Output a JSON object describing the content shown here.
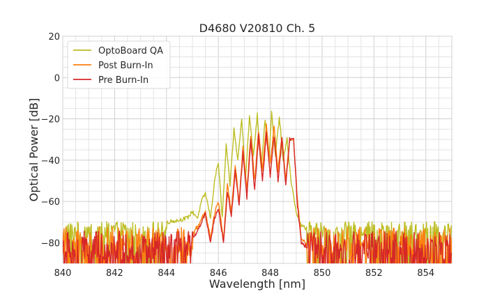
{
  "chart_data": {
    "type": "line",
    "title": "D4680 V20810 Ch. 5",
    "xlabel": "Wavelength [nm]",
    "ylabel": "Optical Power [dB]",
    "xlim": [
      840,
      855
    ],
    "ylim": [
      -90,
      20
    ],
    "xticks": [
      "840",
      "842",
      "844",
      "846",
      "848",
      "850",
      "852",
      "854"
    ],
    "yticks": [
      "20",
      "0",
      "−20",
      "−40",
      "−60",
      "−80"
    ],
    "grid": true,
    "legend": "top-left",
    "series": [
      {
        "name": "OptoBoard QA",
        "color": "#bcbd22",
        "noise_floor": -73,
        "noise_span": 8,
        "x": [
          844.0,
          844.5,
          844.8,
          845.0,
          845.2,
          845.35,
          845.5,
          845.7,
          845.85,
          846.0,
          846.15,
          846.3,
          846.45,
          846.6,
          846.75,
          846.9,
          847.05,
          847.2,
          847.35,
          847.5,
          847.65,
          847.8,
          847.95,
          848.05,
          848.2,
          848.35,
          848.5,
          848.65,
          848.8,
          849.0,
          849.2,
          849.4
        ],
        "y": [
          -70,
          -69,
          -68,
          -65,
          -68,
          -60,
          -56,
          -68,
          -50,
          -41,
          -68,
          -33,
          -52,
          -25,
          -40,
          -20,
          -48,
          -19,
          -38,
          -18,
          -44,
          -20,
          -40,
          -17,
          -38,
          -19,
          -40,
          -30,
          -50,
          -65,
          -72,
          -73
        ]
      },
      {
        "name": "Post Burn-In",
        "color": "#ff7f0e",
        "noise_floor": -78,
        "noise_span": 14,
        "x": [
          845.0,
          845.3,
          845.5,
          845.7,
          845.85,
          846.0,
          846.2,
          846.35,
          846.5,
          846.65,
          846.8,
          846.95,
          847.1,
          847.25,
          847.4,
          847.55,
          847.7,
          847.85,
          848.0,
          848.15,
          848.3,
          848.45,
          848.6,
          848.75,
          848.9,
          849.05,
          849.2,
          849.4
        ],
        "y": [
          -76,
          -70,
          -65,
          -78,
          -66,
          -60,
          -78,
          -52,
          -65,
          -42,
          -60,
          -33,
          -55,
          -28,
          -50,
          -26,
          -45,
          -23,
          -42,
          -24,
          -45,
          -28,
          -50,
          -30,
          -30,
          -60,
          -78,
          -80
        ]
      },
      {
        "name": "Pre Burn-In",
        "color": "#d62728",
        "noise_floor": -80,
        "noise_span": 14,
        "x": [
          845.0,
          845.3,
          845.5,
          845.7,
          845.85,
          846.0,
          846.2,
          846.35,
          846.5,
          846.65,
          846.8,
          846.95,
          847.1,
          847.25,
          847.4,
          847.55,
          847.7,
          847.85,
          848.0,
          848.15,
          848.3,
          848.45,
          848.6,
          848.75,
          848.9,
          849.05,
          849.2,
          849.4
        ],
        "y": [
          -78,
          -72,
          -66,
          -80,
          -68,
          -63,
          -80,
          -55,
          -68,
          -45,
          -62,
          -36,
          -58,
          -30,
          -55,
          -28,
          -50,
          -27,
          -48,
          -28,
          -50,
          -30,
          -52,
          -30,
          -29,
          -62,
          -80,
          -82
        ]
      }
    ]
  }
}
